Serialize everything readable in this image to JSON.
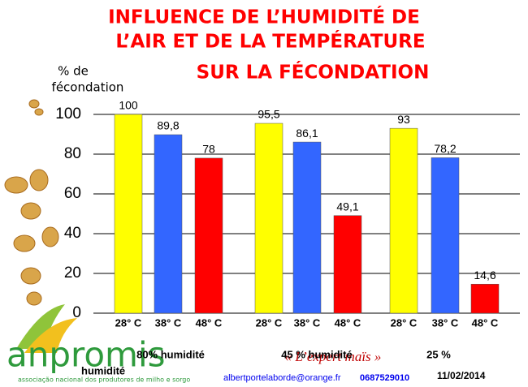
{
  "chart_data": {
    "type": "bar",
    "title": [
      "INFLUENCE DE L’HUMIDITÉ DE",
      "L’AIR ET DE LA TEMPÉRATURE",
      "SUR LA FÉCONDATION"
    ],
    "y_label": [
      "% de",
      "fécondation"
    ],
    "categories": [
      "28° C",
      "38° C",
      "48° C",
      "28° C",
      "38° C",
      "48° C",
      "28° C",
      "38° C",
      "48° C"
    ],
    "values": [
      100,
      89.8,
      78,
      95.5,
      86.1,
      49.1,
      93,
      78.2,
      14.6
    ],
    "value_labels": [
      "100",
      "89,8",
      "78",
      "95,5",
      "86,1",
      "49,1",
      "93",
      "78,2",
      "14,6"
    ],
    "colors": [
      "#ffff00",
      "#3366ff",
      "#ff0000",
      "#ffff00",
      "#3366ff",
      "#ff0000",
      "#ffff00",
      "#3366ff",
      "#ff0000"
    ],
    "group_labels": [
      "80% humidité",
      "45 % humidité",
      "25 %"
    ],
    "ylim": [
      0,
      100
    ],
    "yticks": [
      0,
      20,
      40,
      60,
      80,
      100
    ],
    "grid": true
  },
  "footer": {
    "logo": "anpromis",
    "logo_subtitle": "associação nacional dos produtores de milho e sorgo",
    "extra_label": "humidité",
    "slogan": "« L’expert maïs »",
    "email": "albertportelaborde@orange.fr",
    "phone": "0687529010",
    "date": "11/02/2014"
  }
}
